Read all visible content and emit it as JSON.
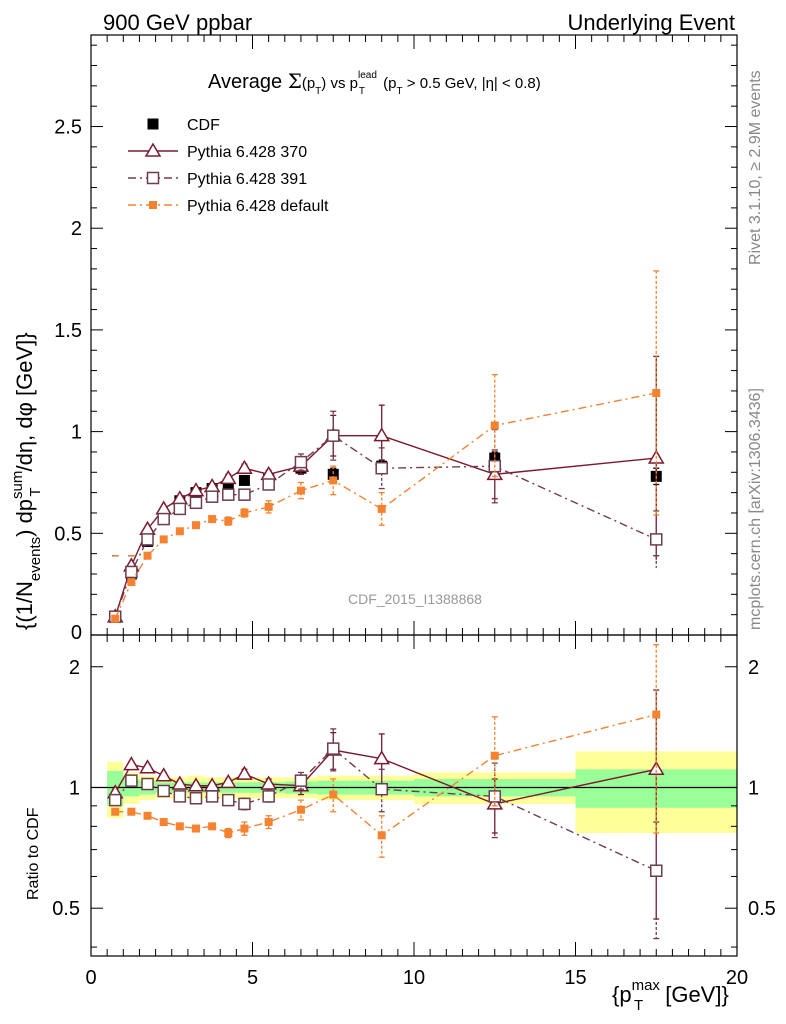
{
  "header": {
    "left": "900 GeV ppbar",
    "right": "Underlying Event"
  },
  "side_labels": {
    "rivet": "Rivet 3.1.10, ≥ 2.9M events",
    "mcplots": "mcplots.cern.ch [arXiv:1306.3436]"
  },
  "watermark": "CDF_2015_I1388868",
  "colors": {
    "data": "#000000",
    "p370": "#7b1a2e",
    "p391": "#6e3d52",
    "pdef": "#f58231",
    "band_inner": "#99ff99",
    "band_outer": "#ffff99"
  },
  "chart_data": [
    {
      "panel": "main",
      "type": "scatter",
      "title": "Average Σ(pT) vs pT^lead (pT > 0.5 GeV, |η| < 0.8)",
      "ylabel": "{(1/N_events) dp_T^sum/dη, dφ [GeV]}",
      "xlim": [
        0,
        20
      ],
      "ylim": [
        0,
        2.95
      ],
      "yticks": [
        "0.5",
        "1",
        "1.5",
        "2",
        "2.5"
      ],
      "grid": false,
      "legend_position": "top-left",
      "x": [
        0.75,
        1.25,
        1.75,
        2.25,
        2.75,
        3.25,
        3.75,
        4.25,
        4.75,
        5.5,
        6.5,
        7.5,
        9.0,
        12.5,
        17.5
      ],
      "series": [
        {
          "name": "CDF",
          "marker": "filled-square",
          "values": [
            0.09,
            0.3,
            0.46,
            0.58,
            0.66,
            0.7,
            0.72,
            0.74,
            0.76,
            0.77,
            0.82,
            0.79,
            0.83,
            0.87,
            0.78
          ],
          "errors": [
            0.01,
            0.01,
            0.01,
            0.01,
            0.01,
            0.01,
            0.01,
            0.01,
            0.01,
            0.02,
            0.02,
            0.03,
            0.03,
            0.03,
            0.04
          ]
        },
        {
          "name": "Pythia 6.428 370",
          "marker": "open-triangle",
          "line": "solid",
          "values": [
            0.09,
            0.34,
            0.52,
            0.62,
            0.67,
            0.71,
            0.73,
            0.77,
            0.82,
            0.79,
            0.83,
            0.98,
            0.98,
            0.79,
            0.87
          ],
          "errors": [
            0.005,
            0.01,
            0.01,
            0.01,
            0.01,
            0.01,
            0.01,
            0.02,
            0.02,
            0.02,
            0.04,
            0.1,
            0.15,
            0.12,
            0.5
          ]
        },
        {
          "name": "Pythia 6.428 391",
          "marker": "open-square",
          "line": "dash-dot",
          "values": [
            0.09,
            0.31,
            0.47,
            0.57,
            0.62,
            0.65,
            0.68,
            0.69,
            0.69,
            0.74,
            0.85,
            0.98,
            0.82,
            0.83,
            0.47
          ],
          "errors": [
            0.005,
            0.01,
            0.01,
            0.01,
            0.01,
            0.01,
            0.01,
            0.02,
            0.02,
            0.02,
            0.04,
            0.12,
            0.1,
            0.18,
            0.14
          ]
        },
        {
          "name": "Pythia 6.428 default",
          "marker": "small-filled-square",
          "line": "dash-dot",
          "values": [
            0.08,
            0.26,
            0.39,
            0.47,
            0.51,
            0.54,
            0.57,
            0.56,
            0.6,
            0.63,
            0.71,
            0.76,
            0.62,
            1.03,
            1.19
          ],
          "errors": [
            0.005,
            0.01,
            0.01,
            0.01,
            0.01,
            0.01,
            0.01,
            0.02,
            0.02,
            0.03,
            0.04,
            0.07,
            0.08,
            0.25,
            0.6
          ]
        }
      ]
    },
    {
      "panel": "ratio",
      "type": "scatter",
      "ylabel": "Ratio to CDF",
      "xlabel": "{p_T^max [GeV]}",
      "xlim": [
        0,
        20
      ],
      "ylim": [
        0.38,
        2.4
      ],
      "log_y": true,
      "xticks": [
        "0",
        "5",
        "10",
        "15",
        "20"
      ],
      "yticks": [
        "0.5",
        "1",
        "2"
      ],
      "x": [
        0.75,
        1.25,
        1.75,
        2.25,
        2.75,
        3.25,
        3.75,
        4.25,
        4.75,
        5.5,
        6.5,
        7.5,
        9.0,
        12.5,
        17.5
      ],
      "band_bins": [
        0.5,
        1.0,
        1.5,
        2.0,
        2.5,
        3.0,
        3.5,
        4.0,
        4.5,
        5.0,
        6.0,
        7.0,
        8.0,
        10.0,
        15.0,
        20.0
      ],
      "band_inner": [
        0.1,
        0.05,
        0.04,
        0.03,
        0.03,
        0.03,
        0.03,
        0.03,
        0.03,
        0.03,
        0.035,
        0.04,
        0.04,
        0.05,
        0.11
      ],
      "band_outer": [
        0.16,
        0.09,
        0.07,
        0.06,
        0.06,
        0.07,
        0.06,
        0.06,
        0.06,
        0.06,
        0.06,
        0.07,
        0.07,
        0.09,
        0.23
      ],
      "series": [
        {
          "name": "Pythia 6.428 370",
          "marker": "open-triangle",
          "line": "solid",
          "values": [
            0.97,
            1.14,
            1.12,
            1.07,
            1.02,
            1.01,
            1.01,
            1.03,
            1.08,
            1.02,
            1.01,
            1.24,
            1.18,
            0.91,
            1.11
          ],
          "errors": [
            0.02,
            0.02,
            0.02,
            0.02,
            0.02,
            0.02,
            0.02,
            0.02,
            0.03,
            0.03,
            0.05,
            0.13,
            0.18,
            0.14,
            0.64
          ]
        },
        {
          "name": "Pythia 6.428 391",
          "marker": "open-square",
          "line": "dash-dot",
          "values": [
            0.93,
            1.04,
            1.02,
            0.98,
            0.95,
            0.94,
            0.95,
            0.93,
            0.91,
            0.95,
            1.04,
            1.25,
            0.99,
            0.95,
            0.62
          ],
          "errors": [
            0.02,
            0.02,
            0.02,
            0.02,
            0.02,
            0.02,
            0.02,
            0.02,
            0.03,
            0.03,
            0.05,
            0.15,
            0.12,
            0.2,
            0.2
          ]
        },
        {
          "name": "Pythia 6.428 default",
          "marker": "small-filled-square",
          "line": "dash-dot",
          "values": [
            0.87,
            0.87,
            0.85,
            0.82,
            0.8,
            0.79,
            0.8,
            0.77,
            0.79,
            0.82,
            0.88,
            0.96,
            0.76,
            1.2,
            1.52
          ],
          "errors": [
            0.01,
            0.01,
            0.01,
            0.01,
            0.01,
            0.01,
            0.01,
            0.02,
            0.03,
            0.03,
            0.05,
            0.09,
            0.09,
            0.3,
            0.75
          ]
        }
      ]
    }
  ]
}
